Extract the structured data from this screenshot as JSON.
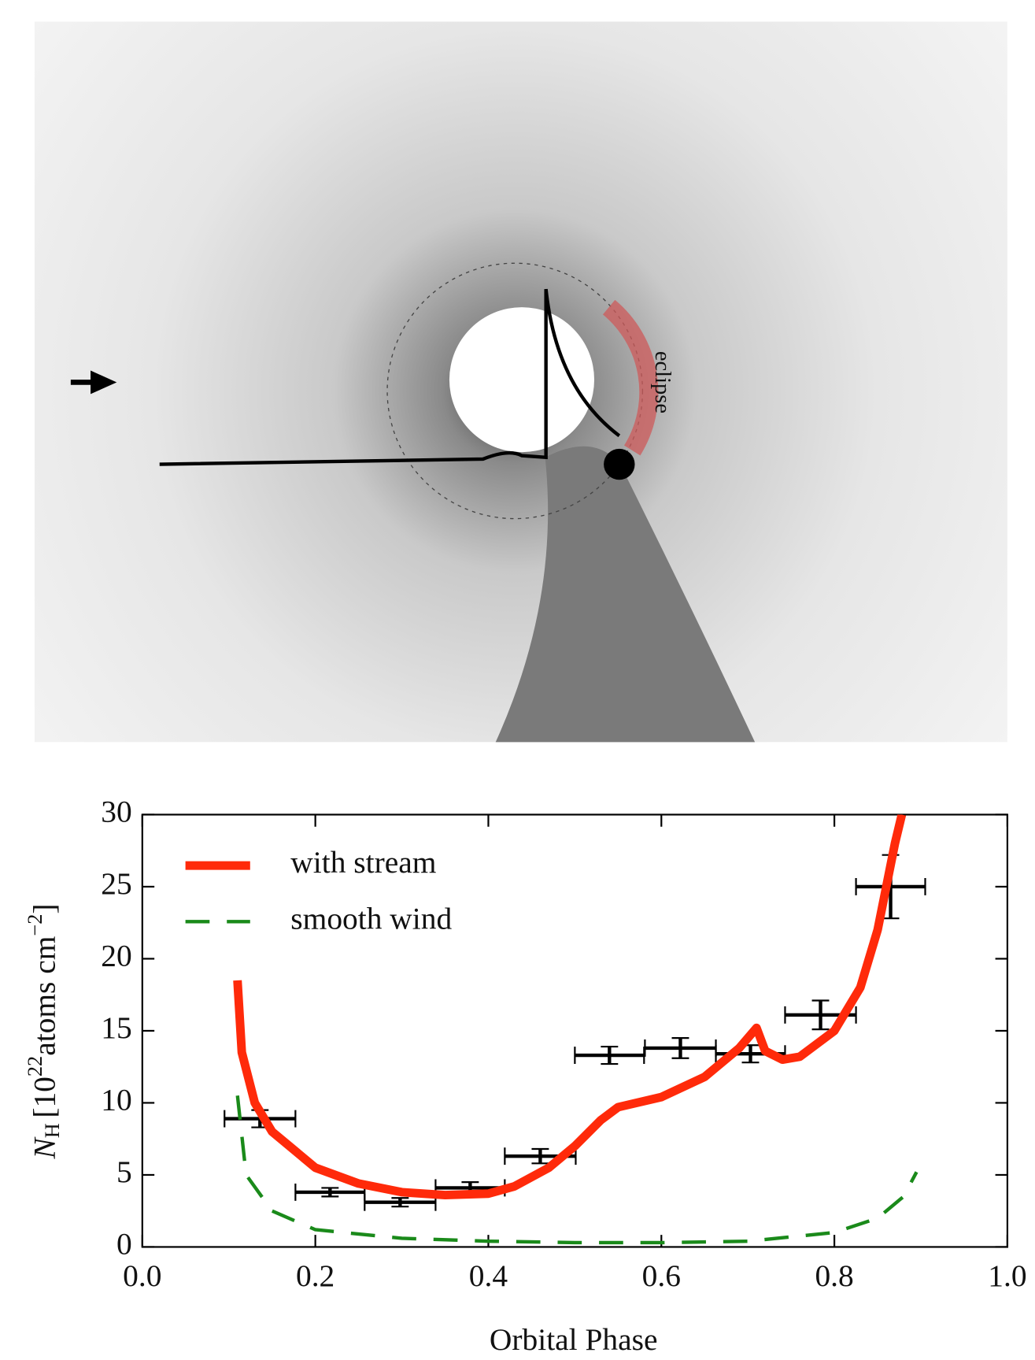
{
  "chart_data": {
    "type": "line",
    "annotation": "eclipse",
    "x_label": "Orbital Phase",
    "y_label": {
      "symbol": "N",
      "sub": "H",
      "open": "[10",
      "exp": "22",
      "unit": "atoms cm",
      "exp2": "−2",
      "close": "]"
    },
    "xlim": [
      0,
      1
    ],
    "ylim": [
      0,
      30
    ],
    "xticks": [
      {
        "value": 0,
        "label": "0.0"
      },
      0.2,
      0.4,
      0.6,
      0.8,
      {
        "value": 1,
        "label": "1.0"
      }
    ],
    "yticks": [
      0,
      5,
      10,
      15,
      20,
      25,
      30
    ],
    "legend": "upper left",
    "series": [
      {
        "name": "with stream",
        "color": "#ff2a0a",
        "dash": "solid",
        "x": [
          0.11,
          0.115,
          0.13,
          0.15,
          0.2,
          0.25,
          0.3,
          0.35,
          0.4,
          0.43,
          0.47,
          0.5,
          0.53,
          0.55,
          0.6,
          0.65,
          0.69,
          0.71,
          0.72,
          0.74,
          0.76,
          0.8,
          0.83,
          0.85,
          0.87,
          0.878
        ],
        "values": [
          18.5,
          13.5,
          10,
          8,
          5.5,
          4.4,
          3.8,
          3.6,
          3.7,
          4.2,
          5.5,
          7,
          8.8,
          9.7,
          10.4,
          11.8,
          13.8,
          15.2,
          13.6,
          13,
          13.2,
          15,
          18,
          22,
          28,
          30
        ]
      },
      {
        "name": "smooth wind",
        "color": "#1a8a1a",
        "dash": "dashed",
        "x": [
          0.11,
          0.12,
          0.15,
          0.2,
          0.3,
          0.4,
          0.5,
          0.6,
          0.7,
          0.8,
          0.85,
          0.88,
          0.895
        ],
        "values": [
          10.5,
          5,
          2.5,
          1.2,
          0.6,
          0.4,
          0.3,
          0.3,
          0.4,
          1,
          2,
          3.5,
          5.2
        ]
      }
    ],
    "errorbars": {
      "color": "#000000",
      "x": [
        0.136,
        0.217,
        0.298,
        0.379,
        0.46,
        0.54,
        0.622,
        0.703,
        0.784,
        0.865
      ],
      "xerr": [
        0.041,
        0.04,
        0.041,
        0.04,
        0.041,
        0.04,
        0.041,
        0.04,
        0.041,
        0.04
      ],
      "y": [
        8.9,
        3.8,
        3.1,
        4.1,
        6.3,
        13.3,
        13.8,
        13.4,
        16.1,
        25
      ],
      "yerr": [
        0.6,
        0.3,
        0.3,
        0.4,
        0.5,
        0.6,
        0.7,
        0.6,
        1,
        2.2
      ]
    }
  }
}
